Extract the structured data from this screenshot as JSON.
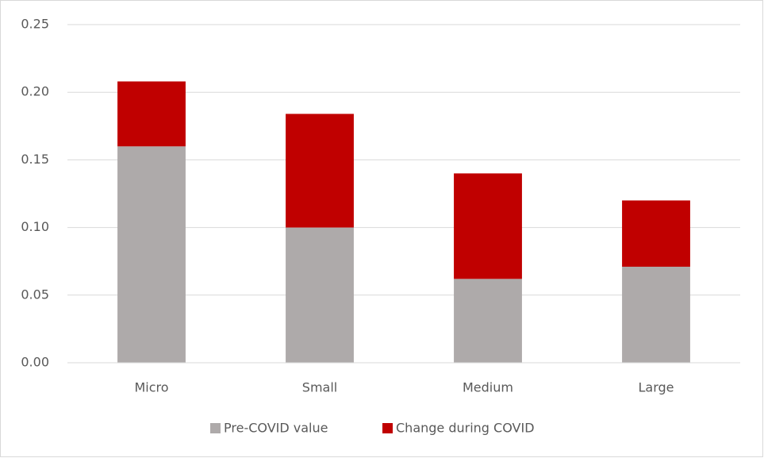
{
  "chart_data": {
    "type": "stacked_bar",
    "categories": [
      "Micro",
      "Small",
      "Medium",
      "Large"
    ],
    "series": [
      {
        "name": "Pre-COVID value",
        "color": "#aeaaaa",
        "values": [
          0.16,
          0.1,
          0.062,
          0.071
        ]
      },
      {
        "name": "Change during COVID",
        "color": "#c00000",
        "values": [
          0.048,
          0.084,
          0.078,
          0.049
        ]
      }
    ],
    "ylim": [
      0,
      0.25
    ],
    "yticks": [
      {
        "value": 0,
        "label": "0.00"
      },
      {
        "value": 0.05,
        "label": "0.05"
      },
      {
        "value": 0.1,
        "label": "0.10"
      },
      {
        "value": 0.15,
        "label": "0.15"
      },
      {
        "value": 0.2,
        "label": "0.20"
      },
      {
        "value": 0.25,
        "label": "0.25"
      }
    ],
    "grid": true,
    "legend": "bottom"
  }
}
